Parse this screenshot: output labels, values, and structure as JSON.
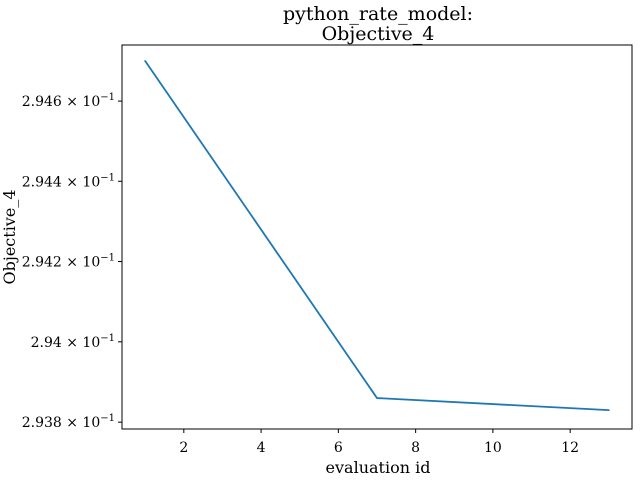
{
  "chart_data": {
    "type": "line",
    "title_line1": "python_rate_model:",
    "title_line2": "Objective_4",
    "xlabel": "evaluation id",
    "ylabel": "Objective_4",
    "x": [
      1,
      7,
      13
    ],
    "series": [
      {
        "values": [
          0.2947,
          0.29386,
          0.29383
        ],
        "color": "#1f77b4"
      }
    ],
    "xlim": [
      0.4,
      13.6
    ],
    "ylim": [
      0.293783,
      0.29474
    ],
    "y_scale": "log",
    "xticks": [
      2,
      4,
      6,
      8,
      10,
      12
    ],
    "xtick_labels": [
      "2",
      "4",
      "6",
      "8",
      "10",
      "12"
    ],
    "yticks": [
      0.2938,
      0.294,
      0.2942,
      0.2944,
      0.2946
    ],
    "ytick_mantissas": [
      "2.938",
      "2.94",
      "2.942",
      "2.944",
      "2.946"
    ],
    "ytick_base": "× 10",
    "ytick_exponent": "−1",
    "grid": false,
    "legend": "none"
  }
}
